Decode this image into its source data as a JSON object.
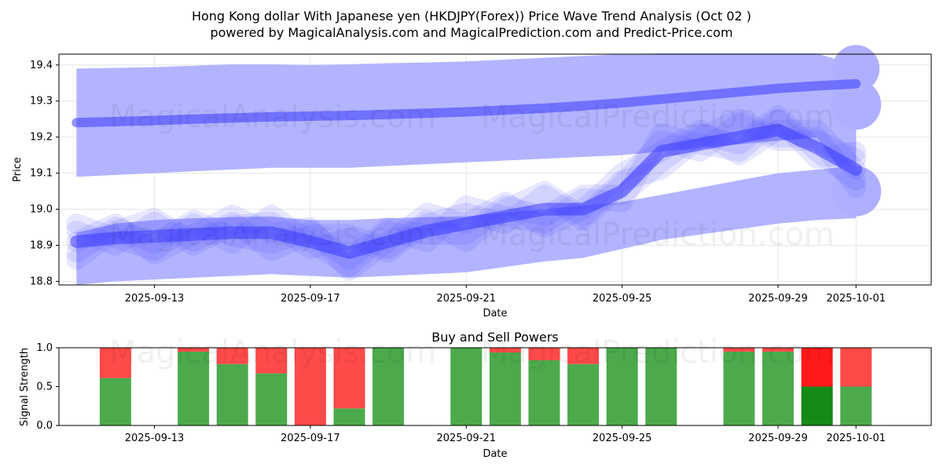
{
  "header": {
    "title_line1": "Hong Kong dollar With Japanese yen (HKDJPY(Forex)) Price Wave Trend Analysis (Oct 02 )",
    "title_line2": "powered by MagicalAnalysis.com and MagicalPrediction.com and Predict-Price.com"
  },
  "watermarks": [
    "MagicalAnalysis.com",
    "MagicalPrediction.com"
  ],
  "colors": {
    "band": "#aeb0ff",
    "wave": "#3a3aff",
    "buy": "#4caa4c",
    "sell": "#ff4a4a",
    "buy_strong": "#168a16",
    "sell_strong": "#ff1a1a",
    "grid": "#e6e6e6"
  },
  "chart_data": [
    {
      "type": "area",
      "title": "",
      "xlabel": "Date",
      "ylabel": "Price",
      "ylim": [
        18.79,
        19.43
      ],
      "xlim": [
        "2025-09-10",
        "2025-10-02"
      ],
      "grid": true,
      "y_ticks": [
        "18.8",
        "18.9",
        "19.0",
        "19.1",
        "19.2",
        "19.3",
        "19.4"
      ],
      "x_ticks": [
        "2025-09-13",
        "2025-09-17",
        "2025-09-21",
        "2025-09-25",
        "2025-09-29",
        "2025-10-01"
      ],
      "dates": [
        "2025-09-11",
        "2025-09-12",
        "2025-09-13",
        "2025-09-14",
        "2025-09-15",
        "2025-09-16",
        "2025-09-17",
        "2025-09-18",
        "2025-09-19",
        "2025-09-20",
        "2025-09-21",
        "2025-09-22",
        "2025-09-23",
        "2025-09-24",
        "2025-09-25",
        "2025-09-26",
        "2025-09-27",
        "2025-09-28",
        "2025-09-29",
        "2025-09-30",
        "2025-10-01"
      ],
      "series": [
        {
          "name": "Upper band top",
          "values": [
            19.39,
            19.392,
            19.394,
            19.398,
            19.402,
            19.402,
            19.4,
            19.402,
            19.405,
            19.407,
            19.41,
            19.415,
            19.42,
            19.425,
            19.43,
            19.432,
            19.432,
            19.432,
            19.432,
            19.432,
            19.4
          ]
        },
        {
          "name": "Upper band bottom",
          "values": [
            19.09,
            19.095,
            19.1,
            19.105,
            19.11,
            19.115,
            19.115,
            19.115,
            19.12,
            19.125,
            19.13,
            19.135,
            19.14,
            19.145,
            19.15,
            19.16,
            19.17,
            19.18,
            19.19,
            19.2,
            19.05
          ]
        },
        {
          "name": "Lower band top",
          "values": [
            18.935,
            18.96,
            18.97,
            18.975,
            18.978,
            18.98,
            18.97,
            18.97,
            18.975,
            18.978,
            18.98,
            18.99,
            19.0,
            19.01,
            19.02,
            19.04,
            19.06,
            19.08,
            19.1,
            19.11,
            19.12
          ]
        },
        {
          "name": "Lower band bottom",
          "values": [
            18.79,
            18.8,
            18.805,
            18.81,
            18.815,
            18.82,
            18.815,
            18.81,
            18.815,
            18.82,
            18.825,
            18.84,
            18.855,
            18.865,
            18.89,
            18.915,
            18.93,
            18.945,
            18.96,
            18.97,
            18.975
          ]
        },
        {
          "name": "Long-term trend",
          "values": [
            19.24,
            19.243,
            19.246,
            19.25,
            19.253,
            19.256,
            19.258,
            19.26,
            19.263,
            19.266,
            19.27,
            19.275,
            19.28,
            19.287,
            19.295,
            19.305,
            19.315,
            19.325,
            19.335,
            19.342,
            19.348
          ]
        },
        {
          "name": "Price wave",
          "values": [
            18.91,
            18.92,
            18.925,
            18.93,
            18.935,
            18.935,
            18.91,
            18.88,
            18.91,
            18.94,
            18.96,
            18.98,
            19.0,
            19.0,
            19.05,
            19.16,
            19.18,
            19.2,
            19.22,
            19.17,
            19.11
          ]
        }
      ]
    },
    {
      "type": "bar",
      "title": "Buy and Sell Powers",
      "xlabel": "Date",
      "ylabel": "Signal Strength",
      "ylim": [
        0,
        1
      ],
      "y_ticks": [
        "0.0",
        "0.5",
        "1.0"
      ],
      "x_ticks": [
        "2025-09-13",
        "2025-09-17",
        "2025-09-21",
        "2025-09-25",
        "2025-09-29",
        "2025-10-01"
      ],
      "categories": [
        "2025-09-12",
        "2025-09-14",
        "2025-09-15",
        "2025-09-16",
        "2025-09-17",
        "2025-09-18",
        "2025-09-19",
        "2025-09-21",
        "2025-09-22",
        "2025-09-23",
        "2025-09-24",
        "2025-09-25",
        "2025-09-26",
        "2025-09-28",
        "2025-09-29",
        "2025-09-30",
        "2025-10-01"
      ],
      "series": [
        {
          "name": "Buy",
          "values": [
            0.61,
            0.95,
            0.79,
            0.67,
            0.0,
            0.22,
            1.0,
            1.0,
            0.94,
            0.84,
            0.79,
            1.0,
            1.0,
            0.95,
            0.95,
            0.5,
            0.5
          ]
        },
        {
          "name": "Sell",
          "values": [
            0.39,
            0.05,
            0.21,
            0.33,
            1.0,
            0.78,
            0.0,
            0.0,
            0.06,
            0.16,
            0.21,
            0.0,
            0.0,
            0.05,
            0.05,
            0.5,
            0.5
          ]
        }
      ],
      "strong": [
        false,
        false,
        false,
        false,
        false,
        false,
        false,
        false,
        false,
        false,
        false,
        false,
        false,
        false,
        false,
        true,
        false
      ]
    }
  ]
}
